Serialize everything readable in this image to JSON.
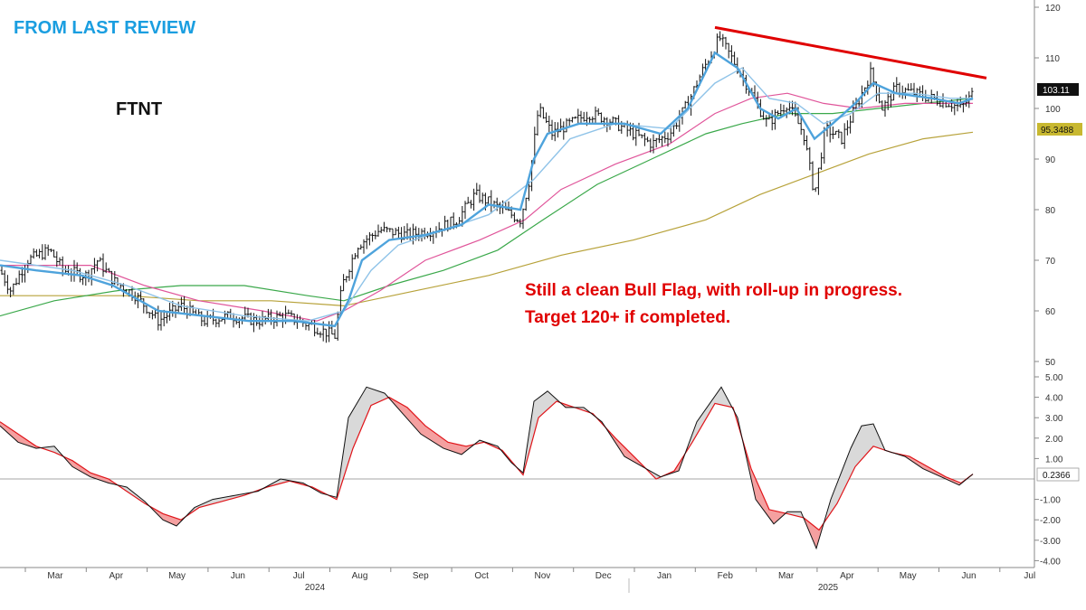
{
  "header": {
    "review_label": "FROM LAST REVIEW",
    "ticker": "FTNT"
  },
  "annotation": {
    "line1": "Still a clean Bull Flag, with roll-up in progress.",
    "line2": "Target 120+ if completed."
  },
  "colors": {
    "header": "#1a9ee0",
    "annotation": "#e00000",
    "trendline": "#e00000",
    "price_bar": "#111111",
    "ma_fast": "#4ea3dc",
    "ma_medium": "#8fc3e8",
    "ma_pink": "#e0559a",
    "ma_green": "#3aa84a",
    "ma_olive": "#b7a23a",
    "osc_line": "#111111",
    "osc_signal": "#e0151a",
    "fill_bull": "#d9d9d9",
    "fill_bear": "#f4a0a0",
    "last_price_tag": "#111111",
    "ma_olive_tag": "#c8b830"
  },
  "chart_data": [
    {
      "type": "line",
      "name": "price-panel",
      "ticker": "FTNT",
      "x_months": [
        "Mar",
        "Apr",
        "May",
        "Jun",
        "Jul",
        "Aug",
        "Sep",
        "Oct",
        "Nov",
        "Dec",
        "Jan",
        "Feb",
        "Mar",
        "Apr",
        "May",
        "Jun",
        "Jul"
      ],
      "x_years": [
        "2024",
        "2025"
      ],
      "y_ticks": [
        50,
        60,
        70,
        80,
        90,
        100,
        110,
        120
      ],
      "ylim": [
        50,
        120
      ],
      "last_value": "103.11",
      "ma_last_value": "95.3488",
      "price_path": [
        [
          0,
          68
        ],
        [
          12,
          64
        ],
        [
          30,
          70
        ],
        [
          55,
          72
        ],
        [
          70,
          68
        ],
        [
          95,
          67
        ],
        [
          108,
          70
        ],
        [
          125,
          66
        ],
        [
          150,
          63
        ],
        [
          175,
          58
        ],
        [
          200,
          61
        ],
        [
          225,
          58
        ],
        [
          255,
          59
        ],
        [
          285,
          58
        ],
        [
          315,
          59
        ],
        [
          345,
          57
        ],
        [
          370,
          55
        ],
        [
          378,
          65
        ],
        [
          395,
          73
        ],
        [
          420,
          76
        ],
        [
          450,
          75
        ],
        [
          480,
          76
        ],
        [
          505,
          78
        ],
        [
          525,
          83
        ],
        [
          545,
          81
        ],
        [
          575,
          78
        ],
        [
          585,
          86
        ],
        [
          595,
          100
        ],
        [
          610,
          95
        ],
        [
          630,
          97
        ],
        [
          650,
          99
        ],
        [
          670,
          98
        ],
        [
          690,
          96
        ],
        [
          720,
          93
        ],
        [
          740,
          95
        ],
        [
          760,
          101
        ],
        [
          775,
          107
        ],
        [
          795,
          114
        ],
        [
          815,
          108
        ],
        [
          830,
          103
        ],
        [
          848,
          97
        ],
        [
          870,
          101
        ],
        [
          888,
          95
        ],
        [
          900,
          83
        ],
        [
          912,
          96
        ],
        [
          930,
          94
        ],
        [
          950,
          102
        ],
        [
          962,
          107
        ],
        [
          975,
          100
        ],
        [
          990,
          104
        ],
        [
          1010,
          103
        ],
        [
          1030,
          102
        ],
        [
          1050,
          101
        ],
        [
          1062,
          100
        ],
        [
          1075,
          103
        ]
      ],
      "ma_fast": [
        [
          0,
          69
        ],
        [
          40,
          68
        ],
        [
          90,
          67
        ],
        [
          125,
          65
        ],
        [
          175,
          60
        ],
        [
          225,
          59
        ],
        [
          275,
          58
        ],
        [
          325,
          58
        ],
        [
          370,
          57
        ],
        [
          385,
          62
        ],
        [
          400,
          70
        ],
        [
          430,
          74
        ],
        [
          470,
          75
        ],
        [
          510,
          77
        ],
        [
          540,
          81
        ],
        [
          575,
          80
        ],
        [
          590,
          90
        ],
        [
          605,
          95
        ],
        [
          640,
          97
        ],
        [
          690,
          97
        ],
        [
          730,
          95
        ],
        [
          760,
          100
        ],
        [
          790,
          111
        ],
        [
          815,
          108
        ],
        [
          840,
          100
        ],
        [
          860,
          98
        ],
        [
          880,
          100
        ],
        [
          900,
          94
        ],
        [
          920,
          97
        ],
        [
          945,
          101
        ],
        [
          965,
          105
        ],
        [
          990,
          103
        ],
        [
          1030,
          102
        ],
        [
          1060,
          101
        ],
        [
          1075,
          102
        ]
      ],
      "ma_medium": [
        [
          0,
          70
        ],
        [
          80,
          68
        ],
        [
          140,
          65
        ],
        [
          200,
          61
        ],
        [
          270,
          59
        ],
        [
          340,
          58
        ],
        [
          380,
          60
        ],
        [
          410,
          68
        ],
        [
          440,
          73
        ],
        [
          490,
          76
        ],
        [
          540,
          79
        ],
        [
          590,
          86
        ],
        [
          630,
          94
        ],
        [
          680,
          97
        ],
        [
          740,
          96
        ],
        [
          790,
          105
        ],
        [
          820,
          108
        ],
        [
          850,
          102
        ],
        [
          880,
          101
        ],
        [
          910,
          97
        ],
        [
          940,
          99
        ],
        [
          970,
          103
        ],
        [
          1010,
          103
        ],
        [
          1050,
          102
        ],
        [
          1075,
          102
        ]
      ],
      "ma_pink": [
        [
          0,
          69
        ],
        [
          100,
          69
        ],
        [
          160,
          65
        ],
        [
          220,
          62
        ],
        [
          290,
          60
        ],
        [
          350,
          58
        ],
        [
          380,
          60
        ],
        [
          420,
          64
        ],
        [
          470,
          70
        ],
        [
          530,
          74
        ],
        [
          580,
          78
        ],
        [
          620,
          84
        ],
        [
          680,
          89
        ],
        [
          740,
          93
        ],
        [
          790,
          99
        ],
        [
          830,
          102
        ],
        [
          870,
          103
        ],
        [
          910,
          101
        ],
        [
          950,
          100
        ],
        [
          1000,
          101
        ],
        [
          1050,
          101
        ],
        [
          1075,
          101
        ]
      ],
      "ma_green": [
        [
          0,
          59
        ],
        [
          60,
          62
        ],
        [
          130,
          64
        ],
        [
          200,
          65
        ],
        [
          270,
          65
        ],
        [
          340,
          63
        ],
        [
          380,
          62
        ],
        [
          430,
          65
        ],
        [
          490,
          68
        ],
        [
          550,
          72
        ],
        [
          600,
          78
        ],
        [
          660,
          85
        ],
        [
          720,
          90
        ],
        [
          780,
          95
        ],
        [
          820,
          97
        ],
        [
          870,
          99
        ],
        [
          920,
          99
        ],
        [
          970,
          100
        ],
        [
          1020,
          101
        ],
        [
          1075,
          102
        ]
      ],
      "ma_olive": [
        [
          0,
          63
        ],
        [
          60,
          63
        ],
        [
          140,
          63
        ],
        [
          220,
          62
        ],
        [
          300,
          62
        ],
        [
          380,
          61
        ],
        [
          460,
          64
        ],
        [
          540,
          67
        ],
        [
          620,
          71
        ],
        [
          700,
          74
        ],
        [
          780,
          78
        ],
        [
          840,
          83
        ],
        [
          900,
          87
        ],
        [
          960,
          91
        ],
        [
          1020,
          94
        ],
        [
          1075,
          95.3
        ]
      ],
      "trendline": [
        [
          790,
          116
        ],
        [
          1090,
          106
        ]
      ]
    },
    {
      "type": "line",
      "name": "oscillator-panel",
      "y_ticks": [
        -4.0,
        -3.0,
        -2.0,
        -1.0,
        1.0,
        2.0,
        3.0,
        4.0,
        5.0
      ],
      "ylim": [
        -4.4,
        5.2
      ],
      "last_value": "0.2366",
      "osc_line": [
        [
          0,
          2.6
        ],
        [
          20,
          1.8
        ],
        [
          40,
          1.5
        ],
        [
          60,
          1.6
        ],
        [
          80,
          0.6
        ],
        [
          100,
          0.1
        ],
        [
          120,
          -0.2
        ],
        [
          140,
          -0.4
        ],
        [
          160,
          -1.1
        ],
        [
          180,
          -2.0
        ],
        [
          195,
          -2.3
        ],
        [
          215,
          -1.4
        ],
        [
          235,
          -1.0
        ],
        [
          260,
          -0.8
        ],
        [
          285,
          -0.6
        ],
        [
          310,
          0
        ],
        [
          335,
          -0.2
        ],
        [
          355,
          -0.7
        ],
        [
          372,
          -0.9
        ],
        [
          385,
          3.0
        ],
        [
          405,
          4.5
        ],
        [
          425,
          4.2
        ],
        [
          445,
          3.2
        ],
        [
          465,
          2.2
        ],
        [
          490,
          1.5
        ],
        [
          510,
          1.2
        ],
        [
          530,
          1.9
        ],
        [
          550,
          1.6
        ],
        [
          565,
          0.8
        ],
        [
          578,
          0.3
        ],
        [
          590,
          3.8
        ],
        [
          605,
          4.3
        ],
        [
          625,
          3.5
        ],
        [
          645,
          3.5
        ],
        [
          665,
          2.8
        ],
        [
          690,
          1.1
        ],
        [
          710,
          0.6
        ],
        [
          730,
          0.1
        ],
        [
          750,
          0.4
        ],
        [
          770,
          2.8
        ],
        [
          797,
          4.5
        ],
        [
          815,
          3.0
        ],
        [
          835,
          -1.0
        ],
        [
          855,
          -2.2
        ],
        [
          870,
          -1.6
        ],
        [
          885,
          -1.6
        ],
        [
          902,
          -3.4
        ],
        [
          918,
          -1.0
        ],
        [
          940,
          1.5
        ],
        [
          952,
          2.6
        ],
        [
          965,
          2.7
        ],
        [
          978,
          1.4
        ],
        [
          1000,
          1.1
        ],
        [
          1020,
          0.5
        ],
        [
          1040,
          0.1
        ],
        [
          1060,
          -0.3
        ],
        [
          1075,
          0.24
        ]
      ],
      "osc_signal": [
        [
          0,
          2.8
        ],
        [
          20,
          2.2
        ],
        [
          40,
          1.6
        ],
        [
          60,
          1.3
        ],
        [
          80,
          0.9
        ],
        [
          100,
          0.3
        ],
        [
          120,
          0
        ],
        [
          140,
          -0.6
        ],
        [
          160,
          -1.2
        ],
        [
          180,
          -1.7
        ],
        [
          200,
          -2.0
        ],
        [
          220,
          -1.4
        ],
        [
          245,
          -1.1
        ],
        [
          270,
          -0.8
        ],
        [
          295,
          -0.4
        ],
        [
          320,
          -0.1
        ],
        [
          345,
          -0.4
        ],
        [
          372,
          -1.0
        ],
        [
          390,
          1.5
        ],
        [
          410,
          3.6
        ],
        [
          430,
          4.0
        ],
        [
          450,
          3.5
        ],
        [
          470,
          2.6
        ],
        [
          495,
          1.8
        ],
        [
          515,
          1.6
        ],
        [
          535,
          1.8
        ],
        [
          555,
          1.4
        ],
        [
          578,
          0.2
        ],
        [
          595,
          3.0
        ],
        [
          615,
          3.8
        ],
        [
          635,
          3.5
        ],
        [
          655,
          3.2
        ],
        [
          680,
          2.0
        ],
        [
          705,
          0.9
        ],
        [
          725,
          0
        ],
        [
          745,
          0.4
        ],
        [
          765,
          1.8
        ],
        [
          790,
          3.7
        ],
        [
          810,
          3.5
        ],
        [
          830,
          0.5
        ],
        [
          850,
          -1.5
        ],
        [
          870,
          -1.7
        ],
        [
          888,
          -1.9
        ],
        [
          905,
          -2.5
        ],
        [
          925,
          -1.2
        ],
        [
          945,
          0.6
        ],
        [
          965,
          1.6
        ],
        [
          985,
          1.3
        ],
        [
          1005,
          1.1
        ],
        [
          1025,
          0.6
        ],
        [
          1045,
          0.1
        ],
        [
          1062,
          -0.2
        ],
        [
          1075,
          0.24
        ]
      ]
    }
  ]
}
